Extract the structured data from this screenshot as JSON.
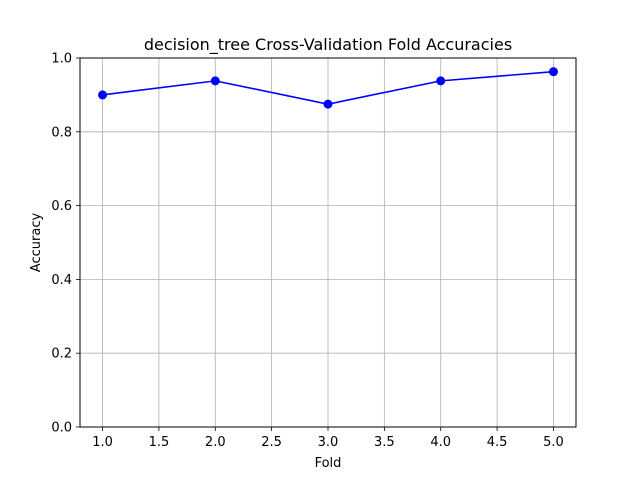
{
  "chart_data": {
    "type": "line",
    "title": "decision_tree Cross-Validation Fold Accuracies",
    "xlabel": "Fold",
    "ylabel": "Accuracy",
    "xlim": [
      0.8,
      5.2
    ],
    "ylim": [
      0.0,
      1.0
    ],
    "x_ticks": [
      "1.0",
      "1.5",
      "2.0",
      "2.5",
      "3.0",
      "3.5",
      "4.0",
      "4.5",
      "5.0"
    ],
    "y_ticks": [
      "0.0",
      "0.2",
      "0.4",
      "0.6",
      "0.8",
      "1.0"
    ],
    "grid": true,
    "series": [
      {
        "x": [
          1,
          2,
          3,
          4,
          5
        ],
        "values": [
          0.9,
          0.938,
          0.875,
          0.938,
          0.963
        ],
        "color": "#0000ff",
        "marker": "circle"
      }
    ]
  }
}
